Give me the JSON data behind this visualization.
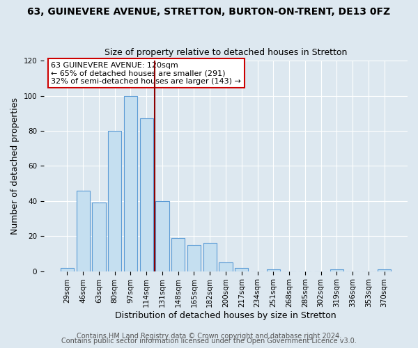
{
  "title": "63, GUINEVERE AVENUE, STRETTON, BURTON-ON-TRENT, DE13 0FZ",
  "subtitle": "Size of property relative to detached houses in Stretton",
  "xlabel": "Distribution of detached houses by size in Stretton",
  "ylabel": "Number of detached properties",
  "bar_labels": [
    "29sqm",
    "46sqm",
    "63sqm",
    "80sqm",
    "97sqm",
    "114sqm",
    "131sqm",
    "148sqm",
    "165sqm",
    "182sqm",
    "200sqm",
    "217sqm",
    "234sqm",
    "251sqm",
    "268sqm",
    "285sqm",
    "302sqm",
    "319sqm",
    "336sqm",
    "353sqm",
    "370sqm"
  ],
  "bar_values": [
    2,
    46,
    39,
    80,
    100,
    87,
    40,
    19,
    15,
    16,
    5,
    2,
    0,
    1,
    0,
    0,
    0,
    1,
    0,
    0,
    1
  ],
  "ylim": [
    0,
    120
  ],
  "yticks": [
    0,
    20,
    40,
    60,
    80,
    100,
    120
  ],
  "bar_color": "#c5dff0",
  "bar_edge_color": "#5b9bd5",
  "vline_x_idx": 5,
  "vline_color": "#8b0000",
  "annotation_line1": "63 GUINEVERE AVENUE: 120sqm",
  "annotation_line2": "← 65% of detached houses are smaller (291)",
  "annotation_line3": "32% of semi-detached houses are larger (143) →",
  "annotation_box_color": "#ffffff",
  "annotation_box_edge_color": "#cc0000",
  "footer_line1": "Contains HM Land Registry data © Crown copyright and database right 2024.",
  "footer_line2": "Contains public sector information licensed under the Open Government Licence v3.0.",
  "background_color": "#dde8f0",
  "plot_background_color": "#dde8f0",
  "title_fontsize": 10,
  "subtitle_fontsize": 9,
  "axis_label_fontsize": 9,
  "tick_fontsize": 7.5,
  "footer_fontsize": 7,
  "annotation_fontsize": 8
}
